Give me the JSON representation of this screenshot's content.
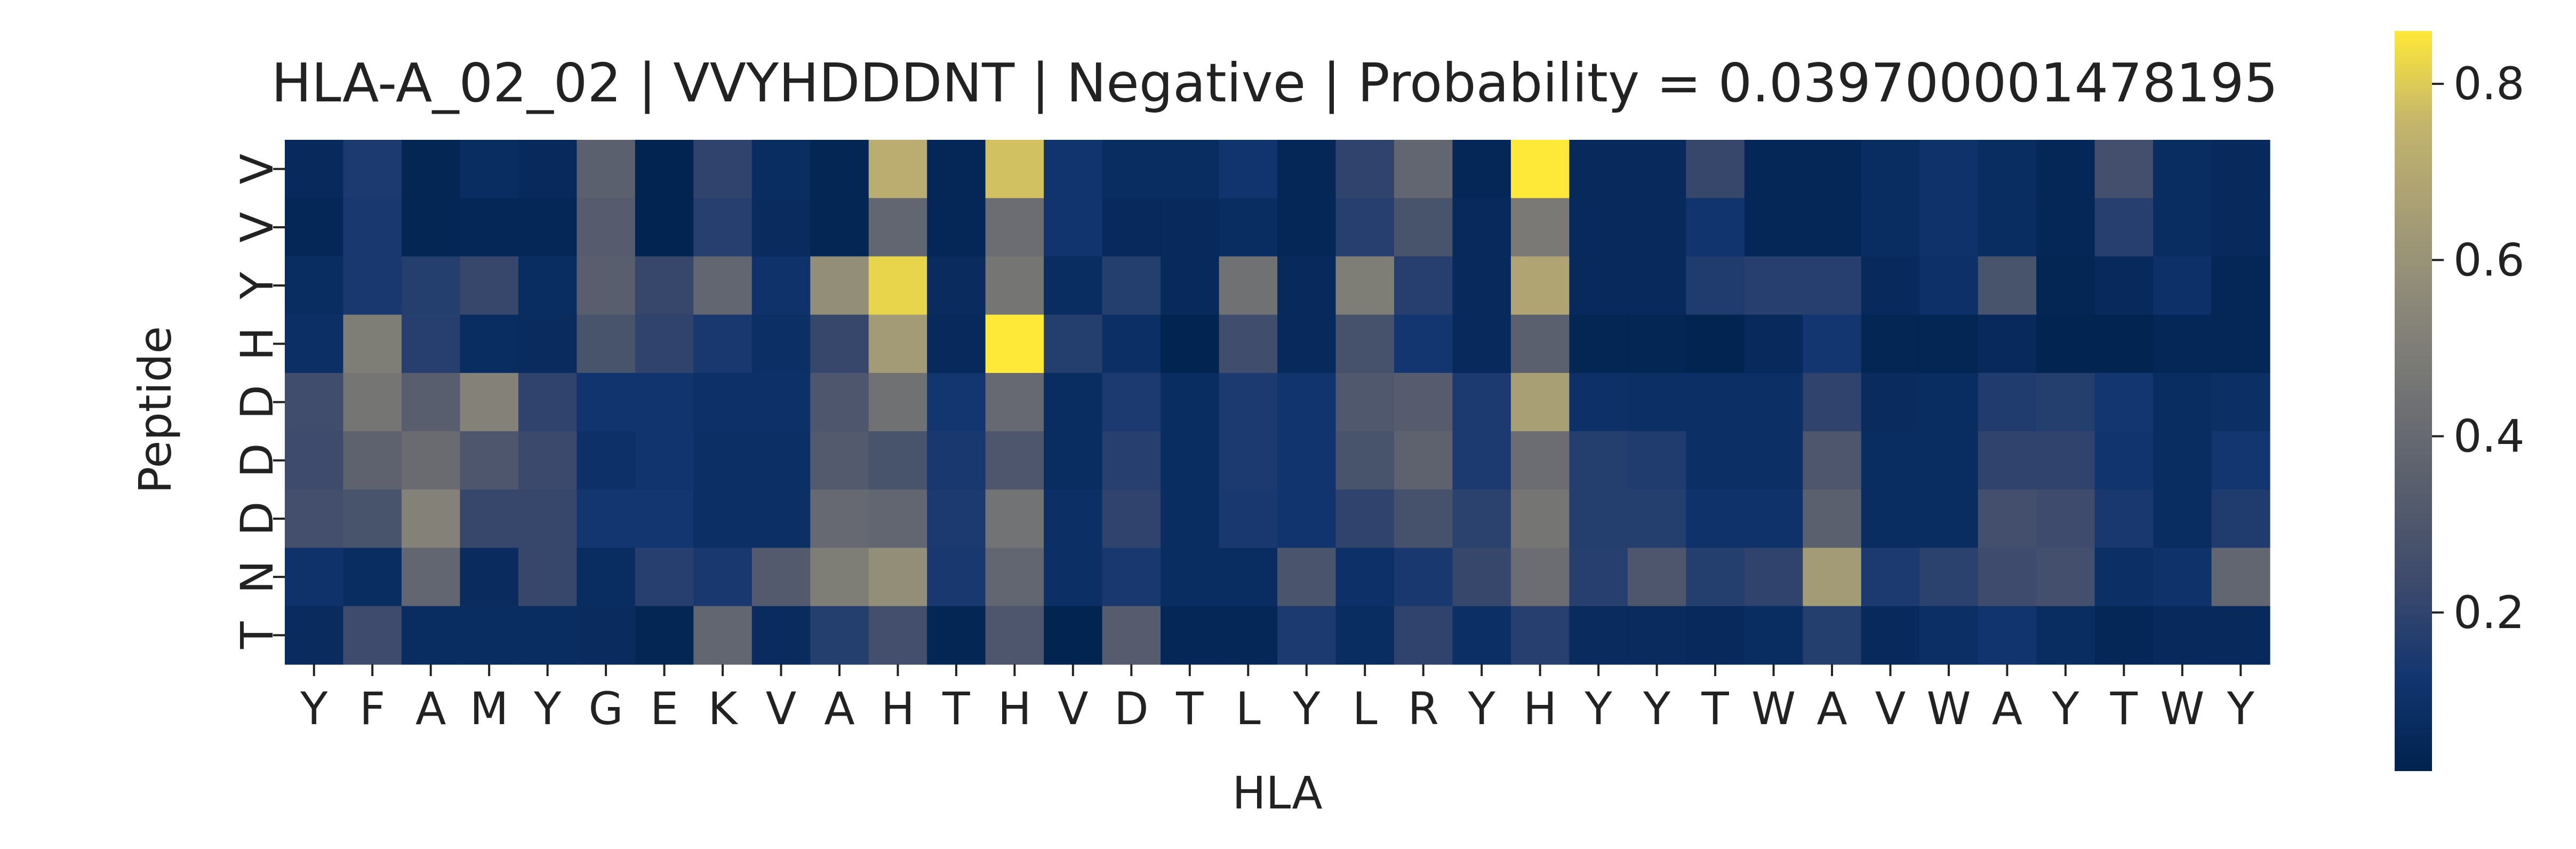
{
  "chart_data": {
    "type": "heatmap",
    "title": "HLA-A_02_02 | VVYHDDDNT | Negative | Probability = 0.039700001478195",
    "xlabel": "HLA",
    "ylabel": "Peptide",
    "x_labels": [
      "Y",
      "F",
      "A",
      "M",
      "Y",
      "G",
      "E",
      "K",
      "V",
      "A",
      "H",
      "T",
      "H",
      "V",
      "D",
      "T",
      "L",
      "Y",
      "L",
      "R",
      "Y",
      "H",
      "Y",
      "Y",
      "T",
      "W",
      "A",
      "V",
      "W",
      "A",
      "Y",
      "T",
      "W",
      "Y"
    ],
    "y_labels": [
      "V",
      "V",
      "Y",
      "H",
      "D",
      "D",
      "D",
      "N",
      "T"
    ],
    "colorbar": {
      "colormap": "cividis",
      "vmin": 0.02,
      "vmax": 0.86,
      "ticks": [
        0.2,
        0.4,
        0.6,
        0.8
      ],
      "tick_labels": [
        "0.2",
        "0.4",
        "0.6",
        "0.8"
      ]
    },
    "values": [
      [
        0.06,
        0.15,
        0.04,
        0.08,
        0.06,
        0.35,
        0.03,
        0.2,
        0.08,
        0.04,
        0.72,
        0.05,
        0.78,
        0.12,
        0.08,
        0.08,
        0.12,
        0.05,
        0.2,
        0.38,
        0.05,
        0.86,
        0.06,
        0.06,
        0.22,
        0.05,
        0.05,
        0.08,
        0.11,
        0.08,
        0.05,
        0.26,
        0.08,
        0.06
      ],
      [
        0.05,
        0.14,
        0.04,
        0.05,
        0.05,
        0.33,
        0.03,
        0.18,
        0.07,
        0.04,
        0.38,
        0.05,
        0.42,
        0.12,
        0.06,
        0.06,
        0.08,
        0.05,
        0.18,
        0.28,
        0.06,
        0.48,
        0.06,
        0.06,
        0.12,
        0.05,
        0.05,
        0.08,
        0.11,
        0.08,
        0.05,
        0.18,
        0.08,
        0.06
      ],
      [
        0.08,
        0.14,
        0.17,
        0.22,
        0.08,
        0.34,
        0.22,
        0.38,
        0.11,
        0.58,
        0.82,
        0.07,
        0.46,
        0.08,
        0.17,
        0.06,
        0.44,
        0.06,
        0.5,
        0.18,
        0.06,
        0.68,
        0.06,
        0.06,
        0.16,
        0.18,
        0.18,
        0.06,
        0.1,
        0.28,
        0.04,
        0.06,
        0.1,
        0.05
      ],
      [
        0.09,
        0.5,
        0.18,
        0.08,
        0.07,
        0.28,
        0.2,
        0.14,
        0.09,
        0.22,
        0.64,
        0.06,
        0.88,
        0.17,
        0.09,
        0.03,
        0.25,
        0.06,
        0.27,
        0.13,
        0.06,
        0.35,
        0.04,
        0.04,
        0.03,
        0.06,
        0.13,
        0.04,
        0.04,
        0.06,
        0.03,
        0.03,
        0.05,
        0.05
      ],
      [
        0.25,
        0.46,
        0.34,
        0.52,
        0.2,
        0.12,
        0.12,
        0.1,
        0.1,
        0.3,
        0.44,
        0.13,
        0.4,
        0.08,
        0.15,
        0.08,
        0.15,
        0.12,
        0.31,
        0.33,
        0.15,
        0.66,
        0.1,
        0.09,
        0.09,
        0.09,
        0.2,
        0.07,
        0.08,
        0.16,
        0.17,
        0.13,
        0.08,
        0.09
      ],
      [
        0.24,
        0.36,
        0.41,
        0.3,
        0.23,
        0.1,
        0.12,
        0.09,
        0.09,
        0.32,
        0.28,
        0.14,
        0.3,
        0.08,
        0.18,
        0.08,
        0.15,
        0.12,
        0.28,
        0.36,
        0.15,
        0.42,
        0.17,
        0.16,
        0.09,
        0.09,
        0.3,
        0.08,
        0.08,
        0.2,
        0.2,
        0.12,
        0.08,
        0.13
      ],
      [
        0.26,
        0.28,
        0.52,
        0.22,
        0.22,
        0.13,
        0.13,
        0.09,
        0.09,
        0.4,
        0.38,
        0.15,
        0.45,
        0.09,
        0.2,
        0.08,
        0.14,
        0.12,
        0.2,
        0.27,
        0.19,
        0.46,
        0.17,
        0.17,
        0.11,
        0.11,
        0.35,
        0.08,
        0.08,
        0.26,
        0.24,
        0.14,
        0.08,
        0.16
      ],
      [
        0.11,
        0.08,
        0.38,
        0.07,
        0.22,
        0.08,
        0.18,
        0.14,
        0.32,
        0.5,
        0.58,
        0.14,
        0.38,
        0.09,
        0.14,
        0.08,
        0.08,
        0.29,
        0.1,
        0.14,
        0.22,
        0.42,
        0.18,
        0.3,
        0.17,
        0.2,
        0.64,
        0.15,
        0.19,
        0.24,
        0.26,
        0.09,
        0.11,
        0.38
      ],
      [
        0.07,
        0.24,
        0.08,
        0.08,
        0.08,
        0.07,
        0.04,
        0.38,
        0.07,
        0.17,
        0.26,
        0.04,
        0.3,
        0.03,
        0.33,
        0.05,
        0.05,
        0.15,
        0.08,
        0.2,
        0.09,
        0.18,
        0.07,
        0.07,
        0.06,
        0.08,
        0.17,
        0.06,
        0.09,
        0.12,
        0.08,
        0.05,
        0.06,
        0.06
      ]
    ]
  }
}
